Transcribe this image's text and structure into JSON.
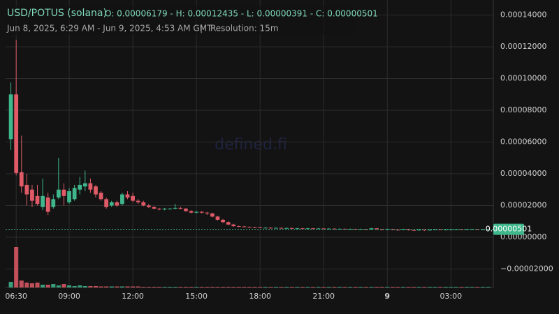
{
  "chart_data": {
    "type": "candlestick",
    "title": "USD/POTUS (solana)",
    "summary": "O: 0.00006179 - H: 0.00012435 - L: 0.00000391 - C: 0.00000501",
    "subtitle": "Jun 8, 2025, 6:29 AM - Jun 9, 2025, 4:53 AM GMT",
    "separator": "|",
    "resolution": "Resolution: 15m",
    "watermark": "defined.fi",
    "up_color": "#3fb68b",
    "down_color": "#e05a67",
    "ylim": [
      -3.08e-05,
      0.0001495
    ],
    "yticks": [
      {
        "value": 0.00014,
        "label": "0.00014000"
      },
      {
        "value": 0.00012,
        "label": "0.00012000"
      },
      {
        "value": 0.0001,
        "label": "0.00010000"
      },
      {
        "value": 8e-05,
        "label": "0.00008000"
      },
      {
        "value": 6e-05,
        "label": "0.00006000"
      },
      {
        "value": 4e-05,
        "label": "0.00004000"
      },
      {
        "value": 2e-05,
        "label": "0.00002000"
      },
      {
        "value": 0,
        "label": "0.00000000"
      },
      {
        "value": -2e-05,
        "label": "−0.00002000"
      }
    ],
    "xlim": [
      -1,
      91
    ],
    "xticks": [
      {
        "value": 1,
        "label": "06:30"
      },
      {
        "value": 11,
        "label": "09:00"
      },
      {
        "value": 23,
        "label": "12:00"
      },
      {
        "value": 35,
        "label": "15:00"
      },
      {
        "value": 47,
        "label": "18:00"
      },
      {
        "value": 59,
        "label": "21:00"
      },
      {
        "value": 71,
        "label": "9"
      },
      {
        "value": 83,
        "label": "03:00"
      }
    ],
    "grid": true,
    "open": [
      6.179e-05,
      9e-05,
      4.1e-05,
      3.3e-05,
      3e-05,
      2.6e-05,
      1.9e-05,
      2.5e-05,
      1.9e-05,
      2.5e-05,
      3e-05,
      2.2e-05,
      2.4e-05,
      3e-05,
      3.2e-05,
      3.4e-05,
      3.2e-05,
      2.8e-05,
      2.4e-05,
      2e-05,
      2.2e-05,
      2.1e-05,
      2.7e-05,
      2.6e-05,
      2.3e-05,
      2.2e-05,
      2e-05,
      1.9e-05,
      1.8e-05,
      1.75e-05,
      1.8e-05,
      1.8e-05,
      1.85e-05,
      1.8e-05,
      1.65e-05,
      1.55e-05,
      1.6e-05,
      1.55e-05,
      1.5e-05,
      1.3e-05,
      1.1e-05,
      9.5e-06,
      8e-06,
      7e-06,
      6.8e-06,
      6.5e-06,
      6.3e-06,
      6.2e-06,
      6e-06,
      6e-06,
      5.8e-06,
      5.9e-06,
      5.7e-06,
      5.8e-06,
      5.6e-06,
      5.6e-06,
      5.5e-06,
      5.6e-06,
      5.4e-06,
      5.5e-06,
      5.3e-06,
      5.4e-06,
      5.2e-06,
      5.3e-06,
      5.1e-06,
      5.2e-06,
      5e-06,
      5.1e-06,
      4.9e-06,
      5.6e-06,
      5e-06,
      4.8e-06,
      5.2e-06,
      4.7e-06,
      4.6e-06,
      5.1e-06,
      4.5e-06,
      4.3e-06,
      4.8e-06,
      4.4e-06,
      4.7e-06,
      4.9e-06,
      4.6e-06,
      4.8e-06,
      4.9e-06,
      5e-06,
      4.9e-06,
      5e-06,
      5.1e-06,
      4.9e-06,
      5e-06
    ],
    "high": [
      9.75e-05,
      0.00012435,
      6.4e-05,
      4e-05,
      3.3e-05,
      3.3e-05,
      3.7e-05,
      2.8e-05,
      2.7e-05,
      5e-05,
      3.4e-05,
      3.1e-05,
      3.3e-05,
      3.8e-05,
      4.2e-05,
      3.7e-05,
      3.3e-05,
      2.9e-05,
      2.5e-05,
      2.3e-05,
      2.3e-05,
      2.8e-05,
      2.9e-05,
      2.8e-05,
      2.4e-05,
      2.3e-05,
      2.1e-05,
      1.95e-05,
      1.85e-05,
      1.85e-05,
      1.85e-05,
      2.1e-05,
      1.9e-05,
      1.85e-05,
      1.7e-05,
      1.65e-05,
      1.65e-05,
      1.6e-05,
      1.55e-05,
      1.35e-05,
      1.15e-05,
      1e-05,
      8.5e-06,
      7.3e-06,
      7.1e-06,
      6.8e-06,
      6.6e-06,
      6.5e-06,
      6.4e-06,
      6.3e-06,
      6.2e-06,
      6.1e-06,
      6.1e-06,
      6e-06,
      5.9e-06,
      5.9e-06,
      5.9e-06,
      5.8e-06,
      5.8e-06,
      5.7e-06,
      5.7e-06,
      5.6e-06,
      5.6e-06,
      5.5e-06,
      5.5e-06,
      5.4e-06,
      5.4e-06,
      5.3e-06,
      5.8e-06,
      5.8e-06,
      5.2e-06,
      5.4e-06,
      5.3e-06,
      4.9e-06,
      5.3e-06,
      5.2e-06,
      4.7e-06,
      5e-06,
      4.9e-06,
      4.9e-06,
      5.1e-06,
      5e-06,
      5e-06,
      5.1e-06,
      5.2e-06,
      5.2e-06,
      5.2e-06,
      5.3e-06,
      5.2e-06,
      5.2e-06,
      5.2e-06
    ],
    "low": [
      5.5e-05,
      3.9e-05,
      2.8e-05,
      2e-05,
      1.9e-05,
      2e-05,
      1.7e-05,
      1.4e-05,
      1.8e-05,
      2.4e-05,
      2e-05,
      2.1e-05,
      2.3e-05,
      2.7e-05,
      2.9e-05,
      2.8e-05,
      2.5e-05,
      2.3e-05,
      1.8e-05,
      1.9e-05,
      1.9e-05,
      2e-05,
      2.4e-05,
      2.2e-05,
      2.1e-05,
      1.95e-05,
      1.85e-05,
      1.75e-05,
      1.7e-05,
      1.7e-05,
      1.75e-05,
      1.75e-05,
      1.75e-05,
      1.6e-05,
      1.5e-05,
      1.5e-05,
      1.5e-05,
      1.4e-05,
      1.25e-05,
      1.05e-05,
      9e-06,
      7.5e-06,
      6.5e-06,
      6.4e-06,
      6.2e-06,
      6e-06,
      5.9e-06,
      5.7e-06,
      5.7e-06,
      5.5e-06,
      5.5e-06,
      5.4e-06,
      5.4e-06,
      5.3e-06,
      5.3e-06,
      5.2e-06,
      5.2e-06,
      5.1e-06,
      5.1e-06,
      5e-06,
      5e-06,
      4.9e-06,
      4.9e-06,
      4.8e-06,
      4.8e-06,
      4.7e-06,
      4.7e-06,
      4.6e-06,
      4.7e-06,
      4.6e-06,
      4.4e-06,
      4.5e-06,
      4.4e-06,
      4.3e-06,
      4.4e-06,
      4.2e-06,
      4e-06,
      4.1e-06,
      3.91e-06,
      4.2e-06,
      4.5e-06,
      4.4e-06,
      4.4e-06,
      4.6e-06,
      4.7e-06,
      4.7e-06,
      4.7e-06,
      4.8e-06,
      4.8e-06,
      4.8e-06,
      4.9e-06
    ],
    "close": [
      9e-05,
      4.05e-05,
      3.2e-05,
      2.7e-05,
      2.3e-05,
      2.1e-05,
      2.6e-05,
      1.6e-05,
      2.4e-05,
      3e-05,
      2.6e-05,
      2.9e-05,
      3.1e-05,
      3.3e-05,
      3.4e-05,
      3e-05,
      2.7e-05,
      2.4e-05,
      1.9e-05,
      2.2e-05,
      2e-05,
      2.7e-05,
      2.5e-05,
      2.3e-05,
      2.2e-05,
      2e-05,
      1.9e-05,
      1.8e-05,
      1.75e-05,
      1.8e-05,
      1.8e-05,
      1.85e-05,
      1.8e-05,
      1.65e-05,
      1.55e-05,
      1.6e-05,
      1.55e-05,
      1.5e-05,
      1.3e-05,
      1.1e-05,
      9.5e-06,
      8e-06,
      7e-06,
      6.8e-06,
      6.5e-06,
      6.3e-06,
      6.2e-06,
      6e-06,
      6e-06,
      5.8e-06,
      5.9e-06,
      5.7e-06,
      5.8e-06,
      5.6e-06,
      5.6e-06,
      5.5e-06,
      5.6e-06,
      5.4e-06,
      5.5e-06,
      5.3e-06,
      5.4e-06,
      5.2e-06,
      5.3e-06,
      5.1e-06,
      5.2e-06,
      5e-06,
      5.1e-06,
      4.9e-06,
      5.6e-06,
      5e-06,
      4.8e-06,
      5.2e-06,
      4.7e-06,
      4.6e-06,
      5.1e-06,
      4.5e-06,
      4.3e-06,
      4.8e-06,
      4.4e-06,
      4.7e-06,
      4.9e-06,
      4.6e-06,
      4.8e-06,
      4.9e-06,
      5e-06,
      4.9e-06,
      5e-06,
      5.1e-06,
      4.9e-06,
      5e-06,
      5.01e-06
    ],
    "volume": [
      8,
      58,
      10,
      7,
      6,
      7,
      4,
      4,
      5,
      3,
      5,
      3,
      2,
      3,
      2,
      2,
      2,
      1.5,
      1.5,
      1.5,
      1.5,
      1.5,
      1.5,
      1.5,
      1.5,
      1,
      1,
      1,
      1,
      1,
      1,
      1,
      1,
      1,
      1,
      1,
      1,
      1,
      1,
      1,
      1,
      1,
      1,
      1,
      1,
      1,
      1,
      1,
      1,
      1,
      1,
      1,
      1,
      1,
      1,
      1,
      1,
      1,
      1,
      1,
      1,
      1,
      1,
      1,
      1,
      1,
      1,
      1,
      1,
      1,
      1,
      1,
      1,
      1,
      1,
      1,
      1,
      1,
      1,
      1,
      1,
      1,
      1,
      1,
      1,
      1,
      1,
      1,
      1,
      1,
      1
    ]
  }
}
